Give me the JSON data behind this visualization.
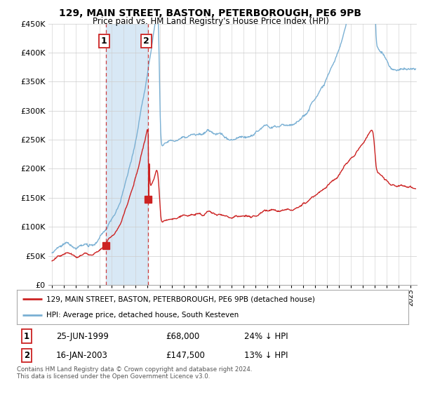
{
  "title": "129, MAIN STREET, BASTON, PETERBOROUGH, PE6 9PB",
  "subtitle": "Price paid vs. HM Land Registry's House Price Index (HPI)",
  "legend_line1": "129, MAIN STREET, BASTON, PETERBOROUGH, PE6 9PB (detached house)",
  "legend_line2": "HPI: Average price, detached house, South Kesteven",
  "footnote": "Contains HM Land Registry data © Crown copyright and database right 2024.\nThis data is licensed under the Open Government Licence v3.0.",
  "marker1_label": "1",
  "marker1_date": "25-JUN-1999",
  "marker1_price": "£68,000",
  "marker1_hpi": "24% ↓ HPI",
  "marker2_label": "2",
  "marker2_date": "16-JAN-2003",
  "marker2_price": "£147,500",
  "marker2_hpi": "13% ↓ HPI",
  "sale1_year": 1999.49,
  "sale1_value": 68000,
  "sale2_year": 2003.05,
  "sale2_value": 147500,
  "ylim": [
    0,
    450000
  ],
  "yticks": [
    0,
    50000,
    100000,
    150000,
    200000,
    250000,
    300000,
    350000,
    400000,
    450000
  ],
  "hpi_color": "#7ab0d4",
  "price_color": "#cc2222",
  "marker_color": "#cc2222",
  "background_color": "#ffffff",
  "grid_color": "#cccccc",
  "shade_color": "#d8e8f5",
  "xlim_left": 1994.7,
  "xlim_right": 2025.5
}
